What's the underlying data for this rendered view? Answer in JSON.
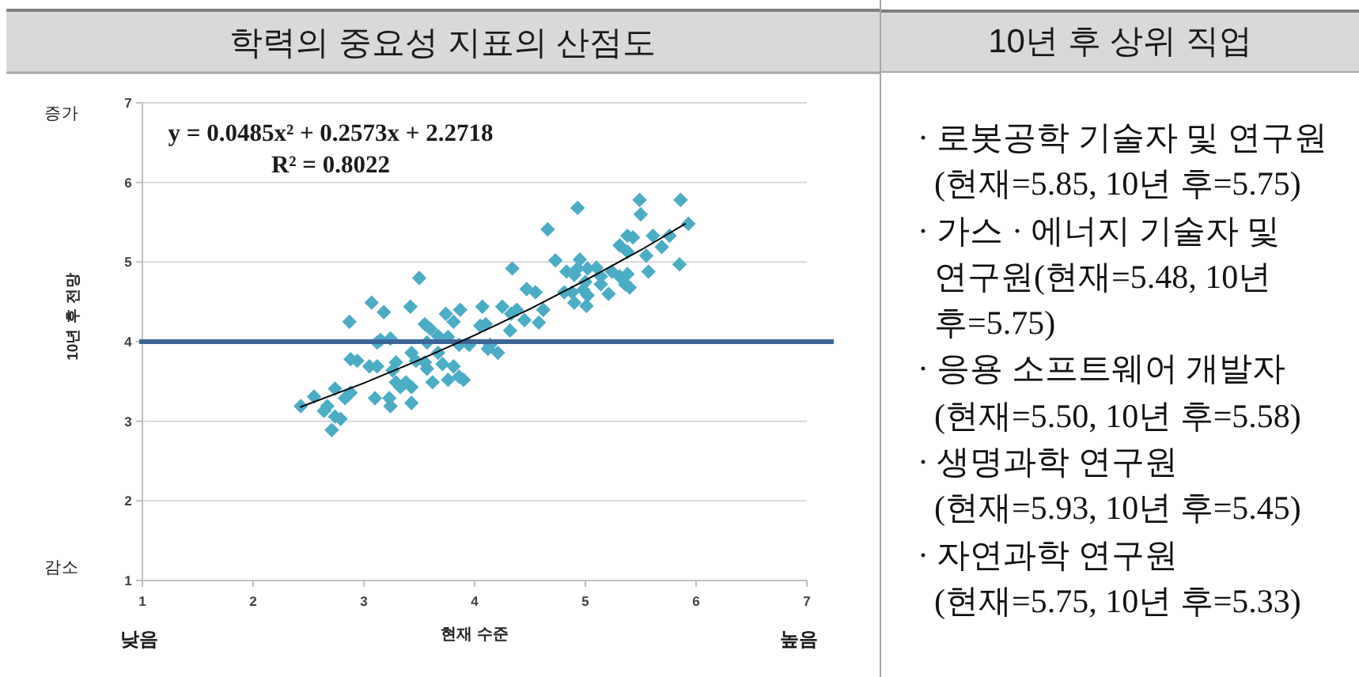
{
  "chart_data": [
    {
      "type": "scatter",
      "title": "학력의 중요성 지표의 산점도",
      "xlabel": "현재 수준",
      "ylabel": "10년 후 전망",
      "annotations": [
        "증가",
        "감소",
        "낮음",
        "높음",
        "y = 0.0485x² + 0.2573x + 2.2718",
        "R² = 0.8022"
      ],
      "xlim": [
        1,
        7
      ],
      "ylim": [
        1,
        7
      ],
      "xticks": [
        1,
        2,
        3,
        4,
        5,
        6,
        7
      ],
      "yticks": [
        1,
        2,
        3,
        4,
        5,
        6,
        7
      ],
      "grid": "y",
      "ref_lines": [
        {
          "axis": "y",
          "value": 4,
          "color": "#3b6596"
        }
      ],
      "series": [
        {
          "type": "scatter",
          "color": "#4bacc6",
          "marker": "diamond",
          "x": [
            3.5,
            3.07,
            3.42,
            3.18,
            2.87,
            4.34,
            4.47,
            4.07,
            4.25,
            3.87,
            3.74,
            3.81,
            3.6,
            3.55,
            4.05,
            4.1,
            4.33,
            4.45,
            4.32,
            3.15,
            3.24,
            3.12,
            3.57,
            3.67,
            3.76,
            3.86,
            3.95,
            4.14,
            4.21,
            4.12,
            2.88,
            2.94,
            3.05,
            3.12,
            3.29,
            3.26,
            3.43,
            3.47,
            3.55,
            3.67,
            3.71,
            3.57,
            3.81,
            3.86,
            3.9,
            3.76,
            3.62,
            3.38,
            3.29,
            3.33,
            3.43,
            2.88,
            2.83,
            3.1,
            3.23,
            3.24,
            3.43,
            2.74,
            2.55,
            2.43,
            2.67,
            2.64,
            2.74,
            2.79,
            2.71,
            5.49,
            5.86,
            5.5,
            4.93,
            4.66,
            5.93,
            5.76,
            5.61,
            5.43,
            5.38,
            5.69,
            5.31,
            5.38,
            5.55,
            4.73,
            4.95,
            4.83,
            4.93,
            5.02,
            5.1,
            4.9,
            5.14,
            5.24,
            5.31,
            5.38,
            5.57,
            5.85,
            5.36,
            5.4,
            5.14,
            5.0,
            4.55,
            4.81,
            4.88,
            4.98,
            5.02,
            5.21,
            4.9,
            5.01,
            4.62,
            4.58,
            4.38
          ],
          "values": [
            4.8,
            4.49,
            4.44,
            4.37,
            4.25,
            4.92,
            4.66,
            4.44,
            4.44,
            4.4,
            4.35,
            4.25,
            4.16,
            4.22,
            4.2,
            4.22,
            4.35,
            4.27,
            4.14,
            4.02,
            4.04,
            3.99,
            3.99,
            4.07,
            4.06,
            3.96,
            3.96,
            3.96,
            3.86,
            3.91,
            3.78,
            3.76,
            3.69,
            3.69,
            3.74,
            3.64,
            3.86,
            3.76,
            3.74,
            3.86,
            3.72,
            3.66,
            3.69,
            3.56,
            3.52,
            3.52,
            3.49,
            3.49,
            3.49,
            3.43,
            3.43,
            3.36,
            3.29,
            3.29,
            3.29,
            3.19,
            3.23,
            3.41,
            3.31,
            3.19,
            3.19,
            3.13,
            3.06,
            3.03,
            2.89,
            5.78,
            5.78,
            5.6,
            5.68,
            5.41,
            5.48,
            5.33,
            5.33,
            5.31,
            5.33,
            5.19,
            5.21,
            5.13,
            5.08,
            5.02,
            5.03,
            4.88,
            4.92,
            4.92,
            4.93,
            4.84,
            4.82,
            4.88,
            4.82,
            4.85,
            4.88,
            4.97,
            4.72,
            4.68,
            4.72,
            4.75,
            4.62,
            4.62,
            4.62,
            4.65,
            4.58,
            4.6,
            4.49,
            4.45,
            4.4,
            4.24,
            4.4
          ]
        },
        {
          "type": "line",
          "color": "#000000",
          "marker": "none",
          "x": [
            2.43,
            3,
            3.5,
            4,
            4.5,
            5,
            5.5,
            5.9
          ],
          "values": [
            3.18,
            3.48,
            3.77,
            4.08,
            4.41,
            4.77,
            5.15,
            5.48
          ]
        }
      ]
    },
    {
      "type": "other",
      "title": "10년 후 상위 직업",
      "annotations": [
        "· 로봇공학 기술자 및 연구원\n(현재=5.85, 10년 후=5.75)",
        "· 가스 · 에너지 기술자 및\n연구원(현재=5.48, 10년\n후=5.75)",
        "· 응용 소프트웨어 개발자\n(현재=5.50, 10년 후=5.58)",
        "· 생명과학 연구원\n(현재=5.93, 10년 후=5.45)",
        "· 자연과학 연구원\n(현재=5.75, 10년 후=5.33)"
      ]
    }
  ]
}
